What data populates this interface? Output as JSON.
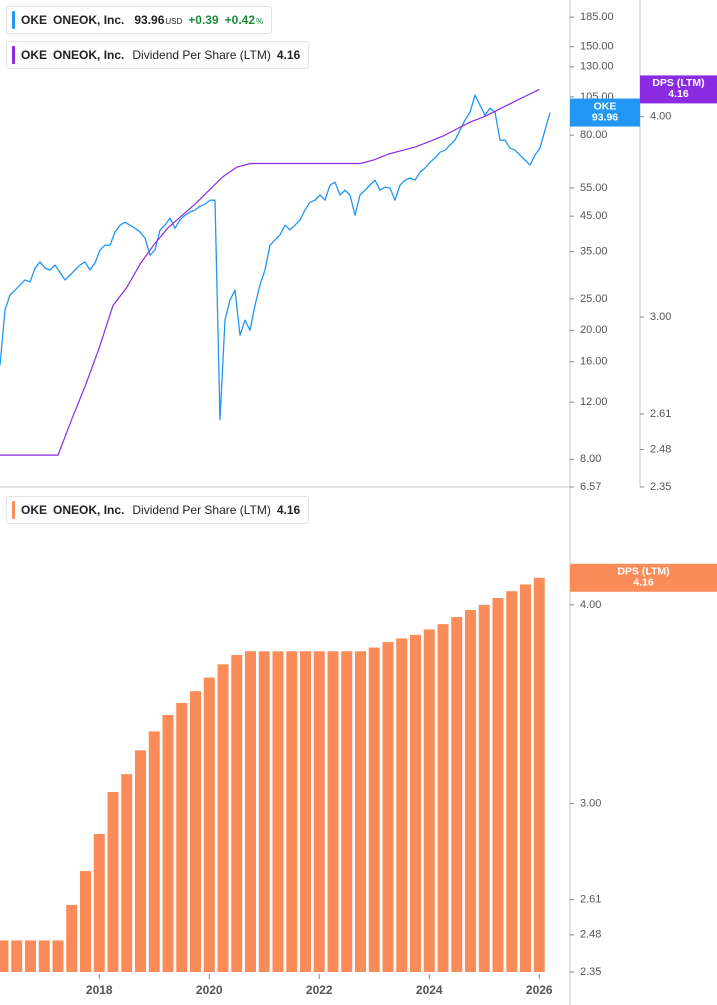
{
  "chart_data": [
    {
      "type": "line",
      "log_scale": true,
      "grid": false,
      "ylim": [
        6.57,
        209
      ],
      "yticks": [
        {
          "value": 185,
          "label": "185.00"
        },
        {
          "value": 150,
          "label": "150.00"
        },
        {
          "value": 130,
          "label": "130.00"
        },
        {
          "value": 105,
          "label": "105.00"
        },
        {
          "value": 80,
          "label": "80.00"
        },
        {
          "value": 55,
          "label": "55.00"
        },
        {
          "value": 45,
          "label": "45.00"
        },
        {
          "value": 35,
          "label": "35.00"
        },
        {
          "value": 25,
          "label": "25.00"
        },
        {
          "value": 20,
          "label": "20.00"
        },
        {
          "value": 16,
          "label": "16.00"
        },
        {
          "value": 12,
          "label": "12.00"
        },
        {
          "value": 8,
          "label": "8.00"
        },
        6.57
      ],
      "y2lim": [
        2.35,
        4.73
      ],
      "y2ticks": [
        {
          "value": 4,
          "label": "4.00"
        },
        {
          "value": 3,
          "label": "3.00"
        },
        2.61,
        2.48,
        2.35
      ],
      "series": [
        {
          "ticker": "OKE",
          "name": "ONEOK, Inc.",
          "color": "#2196f3",
          "axis": "y",
          "last_value": "93.96",
          "currency": "USD",
          "change": "+0.39",
          "change_percent": "+0.42",
          "percent_sign": "%",
          "values": [
            15.6,
            23.1,
            25.7,
            26.6,
            27.6,
            28.6,
            28.2,
            31.1,
            32.5,
            31.1,
            30.7,
            31.8,
            30.2,
            28.6,
            29.6,
            30.7,
            31.8,
            32.5,
            30.7,
            32.3,
            35.4,
            36.6,
            36.6,
            40.2,
            42.2,
            43.1,
            42.2,
            41.3,
            40.2,
            38.5,
            34.1,
            35.4,
            40.8,
            42.2,
            44.4,
            41.3,
            43.8,
            45.3,
            46.3,
            47.0,
            48.3,
            49.0,
            50.4,
            50.4,
            10.6,
            21.5,
            24.8,
            26.6,
            19.3,
            21.5,
            20.0,
            23.9,
            27.6,
            30.7,
            36.6,
            38.0,
            39.4,
            42.2,
            40.8,
            42.2,
            43.8,
            47.0,
            49.7,
            50.4,
            52.3,
            50.4,
            56.1,
            57.3,
            52.3,
            54.1,
            52.3,
            45.3,
            52.3,
            54.1,
            56.1,
            58.1,
            54.1,
            55.3,
            54.9,
            50.4,
            56.1,
            58.1,
            59.0,
            58.1,
            61.5,
            63.3,
            66.0,
            68.0,
            70.9,
            71.9,
            74.5,
            77.2,
            82.9,
            89.0,
            94.2,
            106.3,
            99.0,
            92.2,
            96.9,
            94.2,
            77.2,
            77.2,
            73.0,
            71.9,
            69.4,
            67.0,
            64.7,
            69.4,
            73.0,
            82.9,
            93.96
          ]
        },
        {
          "ticker": "OKE",
          "company": "ONEOK, Inc.",
          "name": "Dividend Per Share (LTM)",
          "flag_label": "DPS (LTM)",
          "color": "#8a2be2",
          "axis": "y2",
          "last_value": "4.16",
          "values": [
            2.46,
            2.46,
            2.46,
            2.46,
            2.46,
            2.59,
            2.72,
            2.87,
            3.05,
            3.13,
            3.24,
            3.33,
            3.41,
            3.47,
            3.53,
            3.6,
            3.67,
            3.72,
            3.74,
            3.74,
            3.74,
            3.74,
            3.74,
            3.74,
            3.74,
            3.74,
            3.74,
            3.76,
            3.79,
            3.81,
            3.83,
            3.86,
            3.89,
            3.93,
            3.97,
            4.0,
            4.04,
            4.08,
            4.12,
            4.16
          ]
        }
      ]
    },
    {
      "type": "bar",
      "log_scale": true,
      "grid": false,
      "ticker": "OKE",
      "company": "ONEOK, Inc.",
      "name": "Dividend Per Share (LTM)",
      "flag_label": "DPS (LTM)",
      "last_value": "4.16",
      "color": "#fb8c5a",
      "categories": [
        null,
        null,
        null,
        null,
        null,
        null,
        null,
        "2018",
        null,
        null,
        null,
        null,
        null,
        null,
        null,
        "2020",
        null,
        null,
        null,
        null,
        null,
        null,
        null,
        "2022",
        null,
        null,
        null,
        null,
        null,
        null,
        null,
        "2024",
        null,
        null,
        null,
        null,
        null,
        null,
        null,
        "2026"
      ],
      "values": [
        2.46,
        2.46,
        2.46,
        2.46,
        2.46,
        2.59,
        2.72,
        2.87,
        3.05,
        3.13,
        3.24,
        3.33,
        3.41,
        3.47,
        3.53,
        3.6,
        3.67,
        3.72,
        3.74,
        3.74,
        3.74,
        3.74,
        3.74,
        3.74,
        3.74,
        3.74,
        3.74,
        3.76,
        3.79,
        3.81,
        3.83,
        3.86,
        3.89,
        3.93,
        3.97,
        4.0,
        4.04,
        4.08,
        4.12,
        4.16
      ],
      "ylim": [
        2.35,
        4.69
      ],
      "yticks": [
        {
          "value": 4,
          "label": "4.00"
        },
        {
          "value": 3,
          "label": "3.00"
        },
        2.61,
        2.48,
        2.35
      ]
    }
  ]
}
